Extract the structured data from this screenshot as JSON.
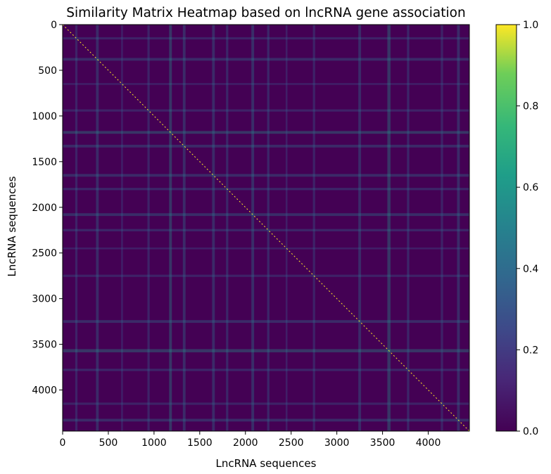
{
  "chart_data": {
    "type": "heatmap",
    "title": "Similarity Matrix Heatmap based on lncRNA gene association",
    "xlabel": "LncRNA sequences",
    "ylabel": "LncRNA sequences",
    "matrix_size": 4450,
    "xlim": [
      0,
      4450
    ],
    "ylim": [
      4450,
      0
    ],
    "x_ticks": [
      0,
      500,
      1000,
      1500,
      2000,
      2500,
      3000,
      3500,
      4000
    ],
    "y_ticks": [
      0,
      500,
      1000,
      1500,
      2000,
      2500,
      3000,
      3500,
      4000
    ],
    "colormap": "viridis",
    "colorbar": {
      "range": [
        0.0,
        1.0
      ],
      "ticks": [
        "0.0",
        "0.2",
        "0.4",
        "0.6",
        "0.8",
        "1.0"
      ]
    },
    "background_value": 0.0,
    "diagonal_value": 1.0,
    "bright_bands": [
      {
        "center": 150,
        "width": 25,
        "strength": 0.35
      },
      {
        "center": 380,
        "width": 30,
        "strength": 0.45
      },
      {
        "center": 650,
        "width": 20,
        "strength": 0.3
      },
      {
        "center": 940,
        "width": 25,
        "strength": 0.35
      },
      {
        "center": 1180,
        "width": 30,
        "strength": 0.6
      },
      {
        "center": 1330,
        "width": 30,
        "strength": 0.45
      },
      {
        "center": 1650,
        "width": 30,
        "strength": 0.45
      },
      {
        "center": 1800,
        "width": 25,
        "strength": 0.4
      },
      {
        "center": 2080,
        "width": 30,
        "strength": 0.5
      },
      {
        "center": 2250,
        "width": 25,
        "strength": 0.4
      },
      {
        "center": 2450,
        "width": 20,
        "strength": 0.3
      },
      {
        "center": 2750,
        "width": 25,
        "strength": 0.35
      },
      {
        "center": 3250,
        "width": 30,
        "strength": 0.45
      },
      {
        "center": 3570,
        "width": 35,
        "strength": 0.6
      },
      {
        "center": 3780,
        "width": 25,
        "strength": 0.4
      },
      {
        "center": 4150,
        "width": 25,
        "strength": 0.35
      },
      {
        "center": 4330,
        "width": 30,
        "strength": 0.45
      }
    ]
  }
}
